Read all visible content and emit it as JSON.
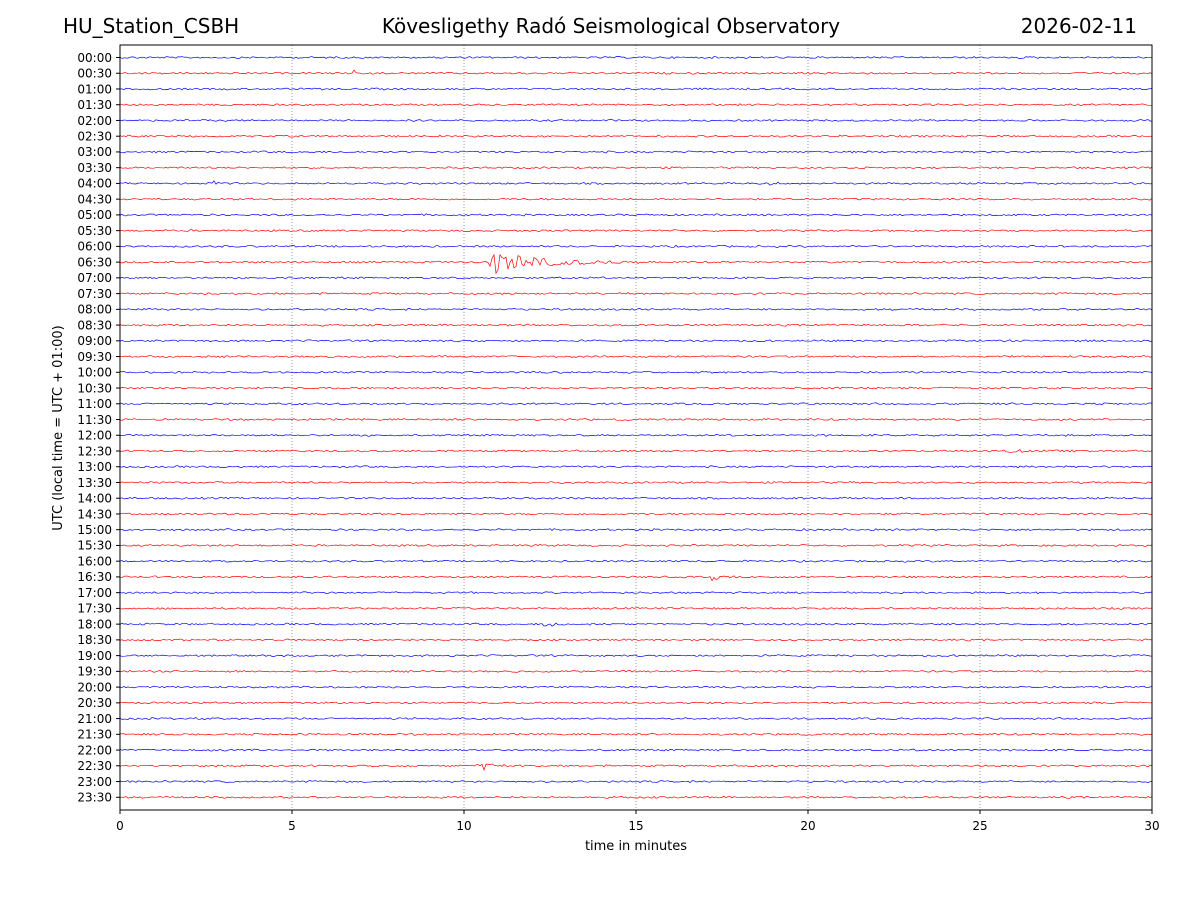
{
  "header": {
    "station": "HU_Station_CSBH",
    "title": "Kövesligethy Radó Seismological Observatory",
    "date": "2026-02-11"
  },
  "chart_data": {
    "type": "line",
    "xlabel": "time in minutes",
    "ylabel": "UTC (local time = UTC + 01:00)",
    "xlim": [
      0,
      30
    ],
    "xticks": [
      0,
      5,
      10,
      15,
      20,
      25,
      30
    ],
    "grid": "vertical dotted at x ticks",
    "trace_colors": [
      "#0000ff",
      "#ff0000"
    ],
    "rows": [
      "00:00",
      "00:30",
      "01:00",
      "01:30",
      "02:00",
      "02:30",
      "03:00",
      "03:30",
      "04:00",
      "04:30",
      "05:00",
      "05:30",
      "06:00",
      "06:30",
      "07:00",
      "07:30",
      "08:00",
      "08:30",
      "09:00",
      "09:30",
      "10:00",
      "10:30",
      "11:00",
      "11:30",
      "12:00",
      "12:30",
      "13:00",
      "13:30",
      "14:00",
      "14:30",
      "15:00",
      "15:30",
      "16:00",
      "16:30",
      "17:00",
      "17:30",
      "18:00",
      "18:30",
      "19:00",
      "19:30",
      "20:00",
      "20:30",
      "21:00",
      "21:30",
      "22:00",
      "22:30",
      "23:00",
      "23:30"
    ],
    "events": [
      {
        "row": "00:30",
        "start_min": 6.8,
        "duration_min": 0.3,
        "amplitude": 3
      },
      {
        "row": "03:30",
        "start_min": 21.3,
        "duration_min": 0.6,
        "amplitude": 2
      },
      {
        "row": "04:00",
        "start_min": 2.7,
        "duration_min": 0.25,
        "amplitude": 5
      },
      {
        "row": "04:00",
        "start_min": 18.8,
        "duration_min": 0.7,
        "amplitude": 3
      },
      {
        "row": "06:30",
        "start_min": 10.7,
        "duration_min": 5.2,
        "amplitude": 14
      },
      {
        "row": "12:30",
        "start_min": 25.8,
        "duration_min": 2.0,
        "amplitude": 1.5
      },
      {
        "row": "16:30",
        "start_min": 17.2,
        "duration_min": 0.9,
        "amplitude": 3
      },
      {
        "row": "18:00",
        "start_min": 12.3,
        "duration_min": 1.0,
        "amplitude": 4
      },
      {
        "row": "22:30",
        "start_min": 10.4,
        "duration_min": 1.5,
        "amplitude": 6
      }
    ]
  }
}
